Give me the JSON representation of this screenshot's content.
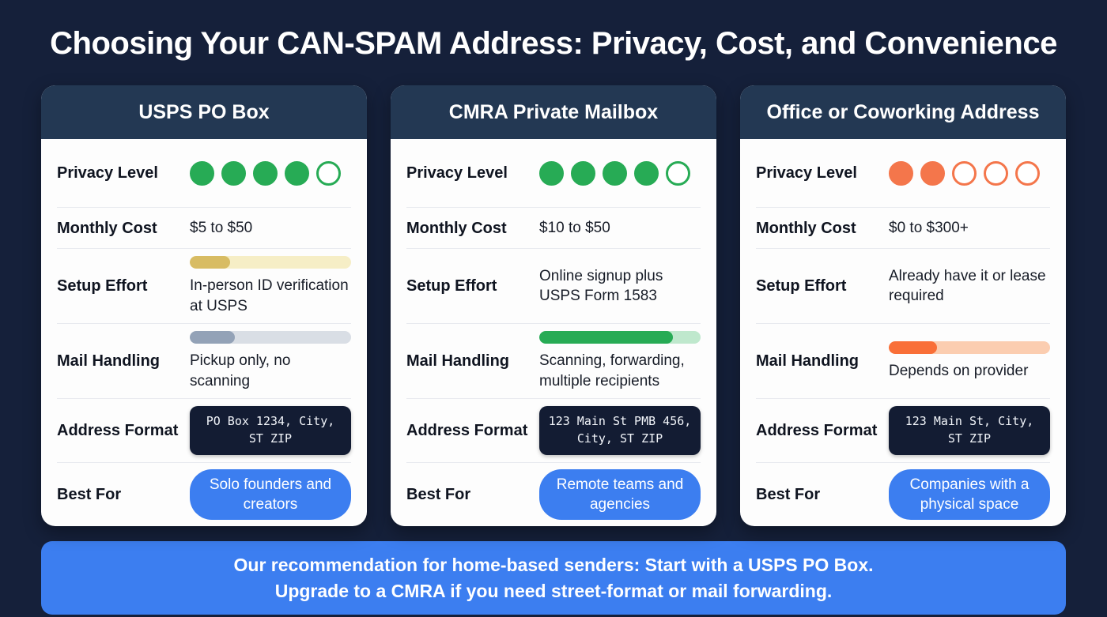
{
  "page": {
    "title": "Choosing Your CAN-SPAM Address: Privacy, Cost, and Convenience"
  },
  "colors": {
    "background": "#15203a",
    "card_header": "#233853",
    "accent_blue": "#3c7ef0",
    "green": "#27ab55",
    "orange": "#f4764b",
    "code_bg": "#131c33"
  },
  "labels": {
    "privacy": "Privacy Level",
    "cost": "Monthly Cost",
    "setup": "Setup Effort",
    "mail": "Mail Handling",
    "address": "Address Format",
    "best": "Best For"
  },
  "cards": [
    {
      "title": "USPS PO Box",
      "privacy": {
        "filled": 4,
        "total": 5,
        "color": "#27ab55"
      },
      "monthly_cost": "$5 to $50",
      "setup_effort": {
        "text": "In-person ID verification at USPS",
        "bar": {
          "percent": 25,
          "fill": "#d8bc63",
          "track": "#f6eec6"
        }
      },
      "mail_handling": {
        "text": "Pickup only, no scanning",
        "bar": {
          "percent": 28,
          "fill": "#93a2b7",
          "track": "#d9dee5"
        }
      },
      "address_format": "PO Box 1234, City, ST ZIP",
      "best_for": "Solo founders and creators"
    },
    {
      "title": "CMRA Private Mailbox",
      "privacy": {
        "filled": 4,
        "total": 5,
        "color": "#27ab55"
      },
      "monthly_cost": "$10 to $50",
      "setup_effort": {
        "text": "Online signup plus USPS Form 1583",
        "bar": null
      },
      "mail_handling": {
        "text": "Scanning, forwarding, multiple recipients",
        "bar": {
          "percent": 83,
          "fill": "#27ab55",
          "track": "#bfe8cd"
        }
      },
      "address_format": "123 Main St PMB 456, City, ST ZIP",
      "best_for": "Remote teams and agencies"
    },
    {
      "title": "Office or Coworking Address",
      "privacy": {
        "filled": 2,
        "total": 5,
        "color": "#f4764b"
      },
      "monthly_cost": "$0 to $300+",
      "setup_effort": {
        "text": "Already have it or lease required",
        "bar": null
      },
      "mail_handling": {
        "text": "Depends on provider",
        "bar": {
          "percent": 30,
          "fill": "#f96f38",
          "track": "#fbcdb0"
        }
      },
      "address_format": "123 Main St, City, ST ZIP",
      "best_for": "Companies with a physical space"
    }
  ],
  "banner": {
    "line1": "Our recommendation for home-based senders: Start with a USPS PO Box.",
    "line2": "Upgrade to a CMRA if you need street-format or mail forwarding."
  },
  "chart_data": {
    "type": "table",
    "title": "Choosing Your CAN-SPAM Address: Privacy, Cost, and Convenience",
    "columns": [
      "USPS PO Box",
      "CMRA Private Mailbox",
      "Office or Coworking Address"
    ],
    "rows": [
      {
        "label": "Privacy Level (out of 5)",
        "values": [
          4,
          4,
          2
        ]
      },
      {
        "label": "Monthly Cost",
        "values": [
          "$5 to $50",
          "$10 to $50",
          "$0 to $300+"
        ]
      },
      {
        "label": "Setup Effort",
        "values": [
          "In-person ID verification at USPS",
          "Online signup plus USPS Form 1583",
          "Already have it or lease required"
        ]
      },
      {
        "label": "Mail Handling",
        "values": [
          "Pickup only, no scanning",
          "Scanning, forwarding, multiple recipients",
          "Depends on provider"
        ]
      },
      {
        "label": "Address Format",
        "values": [
          "PO Box 1234, City, ST ZIP",
          "123 Main St PMB 456, City, ST ZIP",
          "123 Main St, City, ST ZIP"
        ]
      },
      {
        "label": "Best For",
        "values": [
          "Solo founders and creators",
          "Remote teams and agencies",
          "Companies with a physical space"
        ]
      }
    ]
  }
}
